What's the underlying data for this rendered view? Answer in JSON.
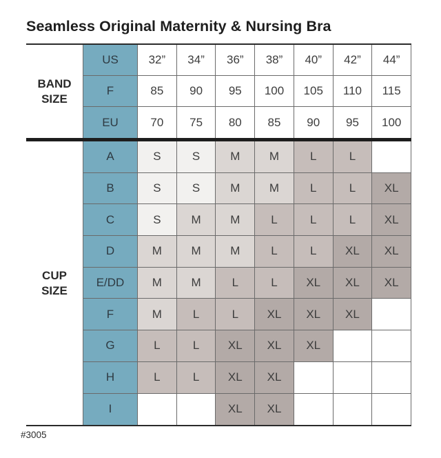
{
  "chart_data": {
    "type": "table",
    "title": "Seamless Original Maternity & Nursing Bra",
    "product_code": "#3005",
    "row_groups": [
      {
        "label": "BAND SIZE",
        "rows": [
          {
            "header": "US",
            "values": [
              "32”",
              "34”",
              "36”",
              "38”",
              "40”",
              "42”",
              "44”"
            ]
          },
          {
            "header": "F",
            "values": [
              "85",
              "90",
              "95",
              "100",
              "105",
              "110",
              "115"
            ]
          },
          {
            "header": "EU",
            "values": [
              "70",
              "75",
              "80",
              "85",
              "90",
              "95",
              "100"
            ]
          }
        ]
      },
      {
        "label": "CUP SIZE",
        "rows": [
          {
            "header": "A",
            "values": [
              "S",
              "S",
              "M",
              "M",
              "L",
              "L",
              ""
            ]
          },
          {
            "header": "B",
            "values": [
              "S",
              "S",
              "M",
              "M",
              "L",
              "L",
              "XL"
            ]
          },
          {
            "header": "C",
            "values": [
              "S",
              "M",
              "M",
              "L",
              "L",
              "L",
              "XL"
            ]
          },
          {
            "header": "D",
            "values": [
              "M",
              "M",
              "M",
              "L",
              "L",
              "XL",
              "XL"
            ]
          },
          {
            "header": "E/DD",
            "values": [
              "M",
              "M",
              "L",
              "L",
              "XL",
              "XL",
              "XL"
            ]
          },
          {
            "header": "F",
            "values": [
              "M",
              "L",
              "L",
              "XL",
              "XL",
              "XL",
              ""
            ]
          },
          {
            "header": "G",
            "values": [
              "L",
              "L",
              "XL",
              "XL",
              "XL",
              "",
              ""
            ]
          },
          {
            "header": "H",
            "values": [
              "L",
              "L",
              "XL",
              "XL",
              "",
              "",
              ""
            ]
          },
          {
            "header": "I",
            "values": [
              "",
              "",
              "XL",
              "XL",
              "",
              "",
              ""
            ]
          }
        ]
      }
    ]
  },
  "colors": {
    "header_teal": "#76abbf",
    "size_S": "#f2f1ef",
    "size_M": "#dbd6d3",
    "size_L": "#c6bdba",
    "size_XL": "#b3aaa7",
    "empty_cell": "#ffffff",
    "grid_line": "#6a6a6a",
    "section_divider": "#1d1d1d"
  }
}
